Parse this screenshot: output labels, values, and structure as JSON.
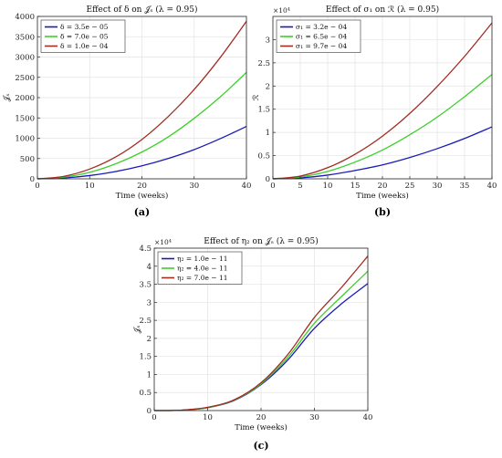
{
  "colors": {
    "blue": "#1a1ab8",
    "green": "#3ccf2a",
    "red": "#a12c22",
    "grid": "#e3e3e3",
    "axis": "#262626"
  },
  "chart_data": [
    {
      "panel": "(a)",
      "type": "line",
      "title": "Effect of δ on 𝒥ₛ (λ = 0.95)",
      "xlabel": "Time (weeks)",
      "ylabel": "𝒥ₛ",
      "xlim": [
        0,
        40
      ],
      "ylim": [
        0,
        4000
      ],
      "xticks": [
        0,
        10,
        20,
        30,
        40
      ],
      "yticks": [
        0,
        500,
        1000,
        1500,
        2000,
        2500,
        3000,
        3500,
        4000
      ],
      "ytick_labels": [
        "0",
        "500",
        "1000",
        "1500",
        "2000",
        "2500",
        "3000",
        "3500",
        "4000"
      ],
      "exponent": "",
      "grid": true,
      "legend": "top-left",
      "x": [
        0,
        5,
        10,
        15,
        20,
        25,
        30,
        35,
        40
      ],
      "series": [
        {
          "name": "δ = 3.5e − 05",
          "color": "#1a1ab8",
          "values": [
            0,
            20,
            80,
            180,
            320,
            500,
            720,
            990,
            1290
          ]
        },
        {
          "name": "δ = 7.0e − 05",
          "color": "#3ccf2a",
          "values": [
            0,
            40,
            160,
            370,
            660,
            1030,
            1490,
            2020,
            2620
          ]
        },
        {
          "name": "δ = 1.0e − 04",
          "color": "#a12c22",
          "values": [
            0,
            60,
            240,
            540,
            970,
            1530,
            2200,
            2990,
            3880
          ]
        }
      ]
    },
    {
      "panel": "(b)",
      "type": "line",
      "title": "Effect of σ₁ on ℛ (λ = 0.95)",
      "xlabel": "Time (weeks)",
      "ylabel": "ℛ",
      "xlim": [
        0,
        40
      ],
      "ylim": [
        0,
        3.5
      ],
      "xticks": [
        0,
        5,
        10,
        15,
        20,
        25,
        30,
        35,
        40
      ],
      "yticks": [
        0,
        0.5,
        1,
        1.5,
        2,
        2.5,
        3
      ],
      "ytick_labels": [
        "0",
        "0.5",
        "1",
        "1.5",
        "2",
        "2.5",
        "3"
      ],
      "exponent": "×10⁴",
      "grid": true,
      "legend": "top-left",
      "x": [
        0,
        5,
        10,
        15,
        20,
        25,
        30,
        35,
        40
      ],
      "series": [
        {
          "name": "σ₁ = 3.2e − 04",
          "color": "#1a1ab8",
          "values": [
            0,
            0.02,
            0.08,
            0.18,
            0.3,
            0.46,
            0.65,
            0.87,
            1.12
          ]
        },
        {
          "name": "σ₁ = 6.5e − 04",
          "color": "#3ccf2a",
          "values": [
            0,
            0.04,
            0.16,
            0.36,
            0.62,
            0.95,
            1.33,
            1.77,
            2.25
          ]
        },
        {
          "name": "σ₁ = 9.7e − 04",
          "color": "#a12c22",
          "values": [
            0,
            0.06,
            0.24,
            0.53,
            0.92,
            1.41,
            1.99,
            2.64,
            3.36
          ]
        }
      ]
    },
    {
      "panel": "(c)",
      "type": "line",
      "title": "Effect of η₂ on 𝒥ₛ (λ = 0.95)",
      "xlabel": "Time (weeks)",
      "ylabel": "𝒥ₛ",
      "xlim": [
        0,
        40
      ],
      "ylim": [
        0,
        4.5
      ],
      "xticks": [
        0,
        10,
        20,
        30,
        40
      ],
      "yticks": [
        0,
        0.5,
        1,
        1.5,
        2,
        2.5,
        3,
        3.5,
        4,
        4.5
      ],
      "ytick_labels": [
        "0",
        "0.5",
        "1",
        "1.5",
        "2",
        "2.5",
        "3",
        "3.5",
        "4",
        "4.5"
      ],
      "exponent": "×10⁴",
      "grid": true,
      "legend": "top-left",
      "x": [
        0,
        5,
        10,
        15,
        20,
        25,
        30,
        35,
        40
      ],
      "series": [
        {
          "name": "η₂ = 1.0e − 11",
          "color": "#1a1ab8",
          "values": [
            0,
            0.01,
            0.08,
            0.28,
            0.72,
            1.4,
            2.28,
            2.95,
            3.52
          ]
        },
        {
          "name": "η₂ = 4.0e − 11",
          "color": "#3ccf2a",
          "values": [
            0,
            0.01,
            0.08,
            0.29,
            0.74,
            1.47,
            2.42,
            3.15,
            3.86
          ]
        },
        {
          "name": "η₂ = 7.0e − 11",
          "color": "#a12c22",
          "values": [
            0,
            0.01,
            0.09,
            0.3,
            0.77,
            1.55,
            2.58,
            3.4,
            4.28
          ]
        }
      ]
    }
  ]
}
